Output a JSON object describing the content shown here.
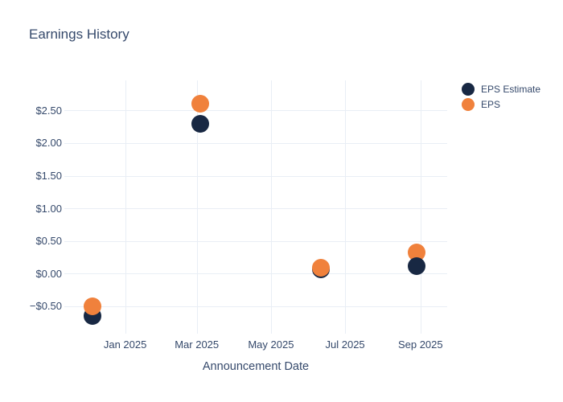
{
  "chart": {
    "title": "Earnings History"
  },
  "chart_data": {
    "type": "scatter",
    "title": "Earnings History",
    "xlabel": "Announcement Date",
    "ylabel": "",
    "grid": true,
    "legend_position": "right-top",
    "xlim": [
      "2024-11-12",
      "2025-09-23"
    ],
    "ylim": [
      -0.92,
      2.96
    ],
    "x_ticks": [
      {
        "date": "2025-01-01",
        "label": "Jan 2025"
      },
      {
        "date": "2025-03-01",
        "label": "Mar 2025"
      },
      {
        "date": "2025-05-01",
        "label": "May 2025"
      },
      {
        "date": "2025-07-01",
        "label": "Jul 2025"
      },
      {
        "date": "2025-09-01",
        "label": "Sep 2025"
      }
    ],
    "y_ticks": [
      {
        "value": 2.5,
        "label": "$2.50"
      },
      {
        "value": 2.0,
        "label": "$2.00"
      },
      {
        "value": 1.5,
        "label": "$1.50"
      },
      {
        "value": 1.0,
        "label": "$1.00"
      },
      {
        "value": 0.5,
        "label": "$0.50"
      },
      {
        "value": 0.0,
        "label": "$0.00"
      },
      {
        "value": -0.5,
        "label": "−$0.50"
      }
    ],
    "series": [
      {
        "name": "EPS Estimate",
        "color": "#182843",
        "marker": "circle",
        "points": [
          {
            "x": "2024-12-05",
            "y": -0.65
          },
          {
            "x": "2025-03-04",
            "y": 2.3
          },
          {
            "x": "2025-06-11",
            "y": 0.07
          },
          {
            "x": "2025-08-29",
            "y": 0.12,
            "z": 3
          }
        ]
      },
      {
        "name": "EPS",
        "color": "#f0813c",
        "marker": "circle",
        "points": [
          {
            "x": "2024-12-05",
            "y": -0.5
          },
          {
            "x": "2025-03-04",
            "y": 2.6
          },
          {
            "x": "2025-06-11",
            "y": 0.09
          },
          {
            "x": "2025-08-29",
            "y": 0.32
          }
        ]
      }
    ]
  }
}
